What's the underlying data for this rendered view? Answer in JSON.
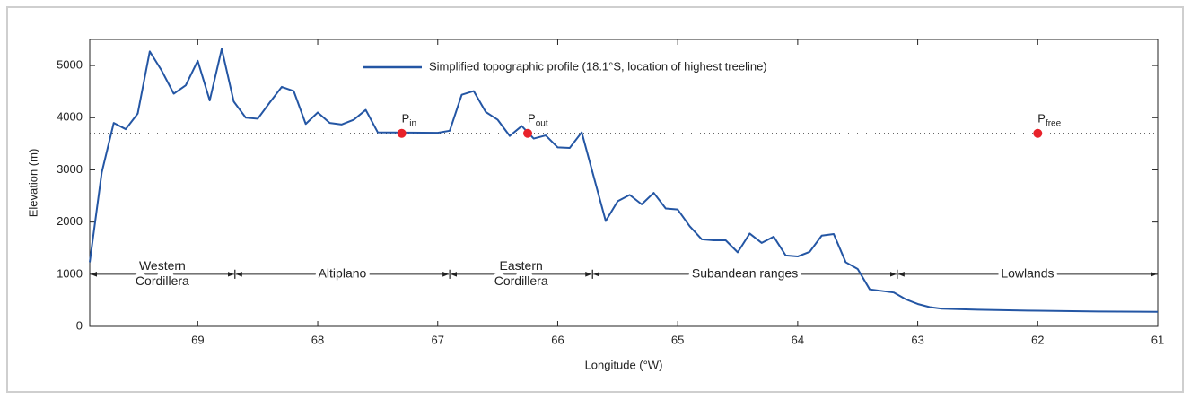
{
  "chart_data": {
    "type": "line",
    "x_label": "Longitude (°W)",
    "y_label": "Elevation (m)",
    "xlim": [
      69.9,
      61
    ],
    "ylim": [
      0,
      5500
    ],
    "xticks": [
      69,
      68,
      67,
      66,
      65,
      64,
      63,
      62,
      61
    ],
    "yticks": [
      0,
      1000,
      2000,
      3000,
      4000,
      5000
    ],
    "x": [
      69.9,
      69.8,
      69.7,
      69.6,
      69.5,
      69.4,
      69.3,
      69.2,
      69.1,
      69.0,
      68.9,
      68.8,
      68.7,
      68.6,
      68.5,
      68.4,
      68.3,
      68.2,
      68.1,
      68.0,
      67.9,
      67.8,
      67.7,
      67.6,
      67.5,
      67.0,
      66.9,
      66.8,
      66.7,
      66.6,
      66.5,
      66.4,
      66.3,
      66.2,
      66.1,
      66.0,
      65.9,
      65.8,
      65.6,
      65.5,
      65.4,
      65.3,
      65.2,
      65.1,
      65.0,
      64.9,
      64.8,
      64.7,
      64.6,
      64.5,
      64.4,
      64.3,
      64.2,
      64.1,
      64.0,
      63.9,
      63.8,
      63.7,
      63.6,
      63.5,
      63.4,
      63.2,
      63.1,
      63.0,
      62.9,
      62.8,
      62.5,
      62.0,
      61.5,
      61.0
    ],
    "series": [
      {
        "name": "Simplified topographic profile (18.1°S, location of highest treeline)",
        "color": "#2456a4",
        "values": [
          1230,
          2950,
          3900,
          3780,
          4080,
          5270,
          4900,
          4460,
          4620,
          5090,
          4330,
          5320,
          4310,
          4000,
          3980,
          4290,
          4590,
          4510,
          3880,
          4100,
          3900,
          3870,
          3960,
          4150,
          3720,
          3710,
          3750,
          4440,
          4510,
          4110,
          3960,
          3650,
          3840,
          3600,
          3660,
          3430,
          3420,
          3720,
          2020,
          2400,
          2520,
          2340,
          2560,
          2260,
          2240,
          1920,
          1670,
          1650,
          1650,
          1420,
          1780,
          1600,
          1720,
          1360,
          1340,
          1430,
          1740,
          1770,
          1230,
          1100,
          710,
          650,
          520,
          430,
          370,
          340,
          320,
          300,
          285,
          280
        ]
      }
    ],
    "reference_line": 3700,
    "points": [
      {
        "label": "P",
        "sub": "in",
        "x": 67.3,
        "y": 3700,
        "color": "#e8222a"
      },
      {
        "label": "P",
        "sub": "out",
        "x": 66.25,
        "y": 3700,
        "color": "#e8222a"
      },
      {
        "label": "P",
        "sub": "free",
        "x": 62.0,
        "y": 3700,
        "color": "#e8222a"
      }
    ],
    "annotation_level": 1000,
    "regions": [
      {
        "lines": [
          "Western",
          "Cordillera"
        ],
        "from": 69.9,
        "to": 68.69
      },
      {
        "lines": [
          "Altiplano"
        ],
        "from": 68.69,
        "to": 66.9
      },
      {
        "lines": [
          "Eastern",
          "Cordillera"
        ],
        "from": 66.9,
        "to": 65.71
      },
      {
        "lines": [
          "Subandean ranges"
        ],
        "from": 65.71,
        "to": 63.17
      },
      {
        "lines": [
          "Lowlands"
        ],
        "from": 63.17,
        "to": 61
      }
    ]
  }
}
